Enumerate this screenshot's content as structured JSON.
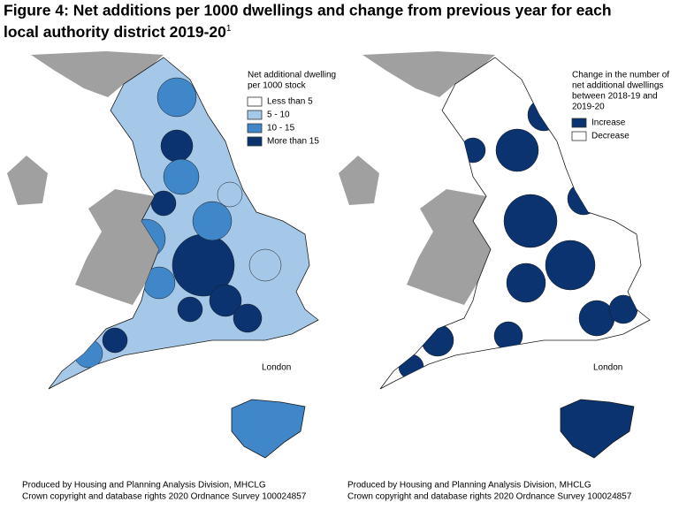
{
  "header": {
    "title_line_1": "Figure 4: Net additions per 1000 dwellings and change from previous year for each",
    "title_line_2": "local authority district 2019-20",
    "title_note": "1"
  },
  "maps": [
    {
      "legend": {
        "title_lines": [
          "Net additional dwelling",
          "per 1000 stock"
        ],
        "items": [
          {
            "label": "Less than 5",
            "color": "#ffffff"
          },
          {
            "label": "5 - 10",
            "color": "#a6c8e8"
          },
          {
            "label": "10 - 15",
            "color": "#3f87c8"
          },
          {
            "label": "More than 15",
            "color": "#0a3370"
          }
        ]
      },
      "inset_label": "London",
      "credits": [
        "Produced by Housing and Planning Analysis Division, MHCLG",
        "Crown copyright and database rights 2020 Ordnance Survey 100024857"
      ]
    },
    {
      "legend": {
        "title_lines": [
          "Change in the number of",
          "net additional dwellings",
          "between 2018-19 and",
          "2019-20"
        ],
        "items": [
          {
            "label": "Increase",
            "color": "#0a3370"
          },
          {
            "label": "Decrease",
            "color": "#ffffff"
          }
        ]
      },
      "inset_label": "London",
      "credits": [
        "Produced by Housing and Planning Analysis Division, MHCLG",
        "Crown copyright and database rights 2020 Ordnance Survey 100024857"
      ]
    }
  ]
}
